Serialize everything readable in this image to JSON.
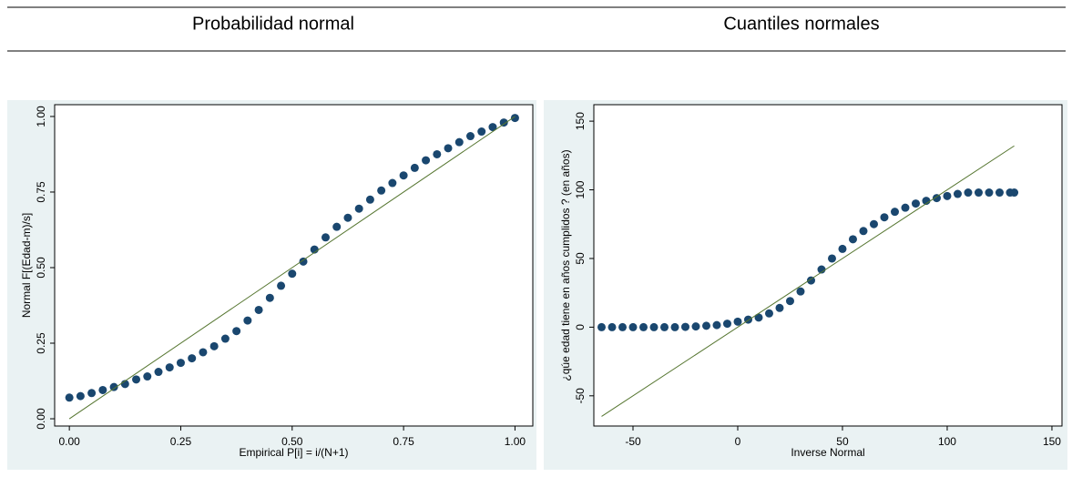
{
  "headers": [
    "Probabilidad normal",
    "Cuantiles normales"
  ],
  "chart_data": [
    {
      "type": "scatter",
      "x_label": "Empirical P[i] = i/(N+1)",
      "y_label": "Normal F[(Edad-m)/s]",
      "marker_color": "#1a476f",
      "reference_color": "#55752f",
      "xlim": [
        -0.033,
        1.04
      ],
      "ylim": [
        -0.024,
        1.039
      ],
      "xticks": [
        {
          "value": 0,
          "label": "0.00"
        },
        {
          "value": 0.25,
          "label": "0.25"
        },
        {
          "value": 0.5,
          "label": "0.50"
        },
        {
          "value": 0.75,
          "label": "0.75"
        },
        {
          "value": 1,
          "label": "1.00"
        }
      ],
      "yticks": [
        {
          "value": 0,
          "label": "0.00"
        },
        {
          "value": 0.25,
          "label": "0.25"
        },
        {
          "value": 0.5,
          "label": "0.50"
        },
        {
          "value": 0.75,
          "label": "0.75"
        },
        {
          "value": 1,
          "label": "1.00"
        }
      ],
      "x": [
        0,
        0.025,
        0.05,
        0.075,
        0.1,
        0.125,
        0.15,
        0.175,
        0.2,
        0.225,
        0.25,
        0.275,
        0.3,
        0.325,
        0.35,
        0.375,
        0.4,
        0.425,
        0.45,
        0.475,
        0.5,
        0.525,
        0.55,
        0.575,
        0.6,
        0.625,
        0.65,
        0.675,
        0.7,
        0.725,
        0.75,
        0.775,
        0.8,
        0.825,
        0.85,
        0.875,
        0.9,
        0.925,
        0.95,
        0.975,
        1
      ],
      "values": [
        0.07,
        0.075,
        0.085,
        0.095,
        0.105,
        0.115,
        0.13,
        0.14,
        0.155,
        0.17,
        0.185,
        0.2,
        0.22,
        0.24,
        0.265,
        0.29,
        0.325,
        0.36,
        0.4,
        0.44,
        0.48,
        0.52,
        0.56,
        0.6,
        0.635,
        0.665,
        0.695,
        0.725,
        0.755,
        0.78,
        0.805,
        0.83,
        0.855,
        0.875,
        0.895,
        0.915,
        0.935,
        0.95,
        0.965,
        0.98,
        0.995
      ],
      "reference_line": {
        "x": [
          0,
          1
        ],
        "y": [
          0,
          1
        ]
      }
    },
    {
      "type": "scatter",
      "x_label": "Inverse Normal",
      "y_label": "¿qúe edad tiene en años cumplidos ? (en años)",
      "marker_color": "#1a476f",
      "reference_color": "#55752f",
      "xlim": [
        -68.7,
        154.8
      ],
      "ylim": [
        -72,
        162
      ],
      "xticks": [
        -50,
        0,
        50,
        100,
        150
      ],
      "yticks": [
        -50,
        0,
        50,
        100,
        150
      ],
      "x": [
        -65,
        -60,
        -55,
        -50,
        -45,
        -40,
        -35,
        -30,
        -25,
        -20,
        -15,
        -10,
        -5,
        0,
        5,
        10,
        15,
        20,
        25,
        30,
        35,
        40,
        45,
        50,
        55,
        60,
        65,
        70,
        75,
        80,
        85,
        90,
        95,
        100,
        105,
        110,
        115,
        120,
        125,
        130,
        132
      ],
      "values": [
        0,
        0,
        0,
        0,
        0,
        0,
        0,
        0,
        0.2,
        0.5,
        1,
        1.5,
        2.5,
        4,
        5.5,
        7,
        10,
        14,
        19,
        26,
        34,
        42,
        50,
        57,
        64,
        70,
        75,
        80,
        84,
        87,
        90,
        92,
        94,
        95.5,
        97,
        98,
        98,
        98,
        98,
        98,
        98
      ],
      "reference_line": {
        "x": [
          -65,
          132
        ],
        "y": [
          -65,
          132
        ]
      }
    }
  ]
}
